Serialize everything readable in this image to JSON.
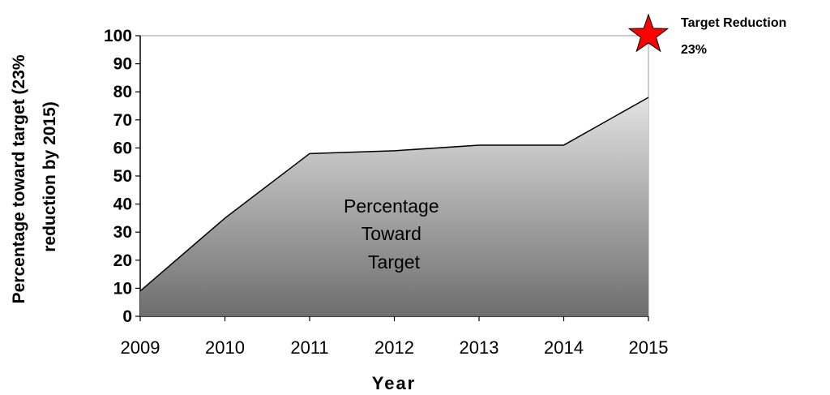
{
  "chart_data": {
    "type": "area",
    "x": [
      2009,
      2010,
      2011,
      2012,
      2013,
      2014,
      2015
    ],
    "series": [
      {
        "values": [
          9,
          35,
          58,
          59,
          61,
          61,
          78
        ]
      }
    ],
    "xlabel": "Year",
    "ylabel": [
      "Percentage toward target (23%",
      "reduction by 2015)"
    ],
    "ylim": [
      0,
      100
    ],
    "yticks": [
      0,
      10,
      20,
      30,
      40,
      50,
      60,
      70,
      80,
      90,
      100
    ],
    "xticks": [
      "2009",
      "2010",
      "2011",
      "2012",
      "2013",
      "2014",
      "2015"
    ],
    "area_label": [
      "Percentage",
      "Toward",
      "Target"
    ],
    "target": {
      "x": 2015,
      "y": 100,
      "label": [
        "Target Reduction",
        "23%"
      ],
      "marker": "star-icon",
      "color": "#ff0000"
    },
    "fill_gradient": [
      "#e2e2e2",
      "#6e6e6e"
    ],
    "grid": false
  }
}
